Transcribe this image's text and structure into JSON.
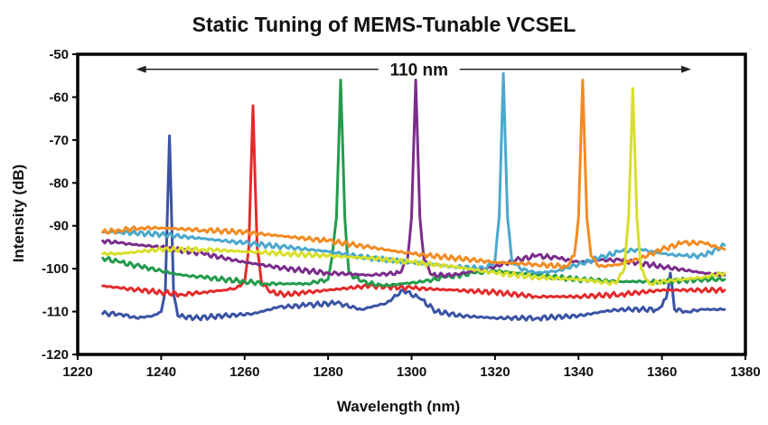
{
  "chart_data": {
    "type": "line",
    "title": "Static Tuning of MEMS-Tunable VCSEL",
    "xlabel": "Wavelength (nm)",
    "ylabel": "Intensity (dB)",
    "xlim": [
      1220,
      1380
    ],
    "ylim": [
      -120,
      -50
    ],
    "xticks": [
      1220,
      1240,
      1260,
      1280,
      1300,
      1320,
      1340,
      1360,
      1380
    ],
    "yticks": [
      -50,
      -60,
      -70,
      -80,
      -90,
      -100,
      -110,
      -120
    ],
    "grid": false,
    "legend": "none",
    "annotation": {
      "text": "110 nm",
      "x_start": 1234,
      "x_end": 1367,
      "y": -53.5
    },
    "series": [
      {
        "color": "#3a53a4",
        "peak": [
          1242,
          -69
        ],
        "x": [
          1226,
          1230,
          1234,
          1238,
          1240,
          1241,
          1242,
          1243,
          1244,
          1248,
          1255,
          1262,
          1268,
          1275,
          1282,
          1288,
          1294,
          1298,
          1302,
          1306,
          1312,
          1320,
          1330,
          1340,
          1346,
          1350,
          1355,
          1359,
          1361,
          1362,
          1363,
          1366,
          1370,
          1375
        ],
        "y": [
          -110.5,
          -110.5,
          -111.5,
          -111,
          -110,
          -105,
          -69,
          -106,
          -111,
          -111.5,
          -111,
          -110.5,
          -109,
          -108.5,
          -108,
          -109.5,
          -108,
          -105,
          -107,
          -110,
          -111,
          -111.5,
          -111.5,
          -111,
          -110,
          -109.5,
          -109.5,
          -109.5,
          -107,
          -101,
          -109.5,
          -110,
          -109.5,
          -109.5
        ]
      },
      {
        "color": "#e32b2b",
        "peak": [
          1262,
          -62
        ],
        "x": [
          1226,
          1230,
          1235,
          1240,
          1245,
          1250,
          1255,
          1258,
          1260,
          1261,
          1262,
          1263,
          1264,
          1266,
          1270,
          1275,
          1280,
          1285,
          1290,
          1300,
          1310,
          1320,
          1330,
          1340,
          1350,
          1360,
          1370,
          1375
        ],
        "y": [
          -104,
          -104.5,
          -105,
          -105.5,
          -106,
          -105.5,
          -105,
          -104.5,
          -103,
          -95,
          -62,
          -95,
          -103,
          -105.5,
          -106,
          -105.5,
          -105,
          -104.5,
          -104,
          -104.5,
          -105,
          -105.5,
          -106.5,
          -106.5,
          -106,
          -105,
          -105,
          -105
        ]
      },
      {
        "color": "#239b4b",
        "peak": [
          1283,
          -56
        ],
        "x": [
          1226,
          1230,
          1235,
          1240,
          1245,
          1250,
          1255,
          1260,
          1265,
          1270,
          1275,
          1280,
          1281,
          1282,
          1283,
          1284,
          1285,
          1288,
          1293,
          1298,
          1303,
          1308,
          1315,
          1320,
          1330,
          1340,
          1350,
          1360,
          1370,
          1375
        ],
        "y": [
          -97.5,
          -98.5,
          -99.5,
          -100.5,
          -101.5,
          -102,
          -102.5,
          -103,
          -103.5,
          -103.5,
          -103.5,
          -102.5,
          -97,
          -88,
          -56,
          -88,
          -101,
          -103,
          -104,
          -103.5,
          -103,
          -102,
          -101,
          -100.5,
          -101.5,
          -102.5,
          -103,
          -103,
          -102.5,
          -102.5
        ]
      },
      {
        "color": "#7b2d8b",
        "peak": [
          1301,
          -56
        ],
        "x": [
          1226,
          1230,
          1240,
          1250,
          1260,
          1270,
          1280,
          1290,
          1297,
          1299,
          1300,
          1301,
          1302,
          1303,
          1305,
          1310,
          1320,
          1325,
          1330,
          1335,
          1340,
          1345,
          1350,
          1360,
          1370,
          1375
        ],
        "y": [
          -93.5,
          -94,
          -95,
          -96.5,
          -98.5,
          -100,
          -101,
          -101.5,
          -101,
          -98,
          -88,
          -56,
          -88,
          -98,
          -101.5,
          -101.5,
          -99.5,
          -98,
          -97,
          -97.5,
          -98.5,
          -98,
          -98,
          -99.5,
          -101,
          -101.5
        ]
      },
      {
        "color": "#4aa8cc",
        "peak": [
          1322,
          -54.5
        ],
        "x": [
          1226,
          1230,
          1240,
          1250,
          1260,
          1270,
          1280,
          1290,
          1300,
          1310,
          1318,
          1320,
          1321,
          1322,
          1323,
          1324,
          1326,
          1330,
          1335,
          1340,
          1345,
          1350,
          1355,
          1360,
          1365,
          1370,
          1375
        ],
        "y": [
          -91.5,
          -91.5,
          -92,
          -93,
          -94,
          -95,
          -96,
          -97.5,
          -98.5,
          -99.5,
          -100,
          -98,
          -88,
          -54.5,
          -88,
          -98,
          -100,
          -101,
          -100.5,
          -99,
          -97.5,
          -96,
          -95.5,
          -96.5,
          -97,
          -97,
          -94.5
        ]
      },
      {
        "color": "#f38b22",
        "peak": [
          1341,
          -56
        ],
        "x": [
          1226,
          1230,
          1235,
          1240,
          1250,
          1260,
          1270,
          1280,
          1290,
          1300,
          1310,
          1320,
          1330,
          1337,
          1339,
          1340,
          1341,
          1342,
          1343,
          1345,
          1350,
          1355,
          1360,
          1365,
          1370,
          1375
        ],
        "y": [
          -91.5,
          -91,
          -90.5,
          -90.5,
          -91,
          -91.5,
          -92.5,
          -93.5,
          -95,
          -96.5,
          -97.5,
          -98.5,
          -99,
          -99.5,
          -97,
          -88,
          -56,
          -88,
          -97,
          -99.5,
          -99,
          -97.5,
          -95.5,
          -94,
          -94,
          -95.5
        ]
      },
      {
        "color": "#d8df2a",
        "peak": [
          1353,
          -58
        ],
        "x": [
          1226,
          1230,
          1235,
          1240,
          1250,
          1260,
          1270,
          1280,
          1290,
          1300,
          1310,
          1320,
          1330,
          1340,
          1345,
          1349,
          1351,
          1352,
          1353,
          1354,
          1355,
          1357,
          1360,
          1365,
          1370,
          1375
        ],
        "y": [
          -96.5,
          -96.5,
          -96,
          -95.5,
          -95.5,
          -96,
          -96.5,
          -97,
          -97.5,
          -98.5,
          -99.5,
          -101,
          -102,
          -102.5,
          -103,
          -103.5,
          -100,
          -88,
          -58,
          -88,
          -100,
          -103.5,
          -103,
          -102.5,
          -102,
          -101
        ]
      }
    ]
  }
}
